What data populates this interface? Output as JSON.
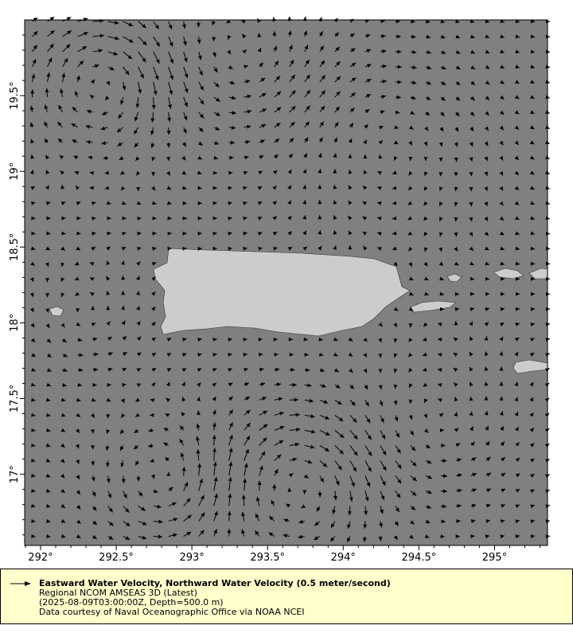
{
  "map": {
    "lon_range": [
      291.895,
      295.35
    ],
    "lat_range": [
      16.53,
      20.0
    ],
    "lon_ticks": [
      "292°",
      "292.5°",
      "293°",
      "293.5°",
      "294°",
      "294.5°",
      "295°"
    ],
    "lon_tick_values": [
      292,
      292.5,
      293,
      293.5,
      294,
      294.5,
      295
    ],
    "lat_ticks": [
      "17°",
      "17.5°",
      "18°",
      "18.5°",
      "19°",
      "19.5°"
    ],
    "lat_tick_values": [
      17,
      17.5,
      18,
      18.5,
      19,
      19.5
    ],
    "vector_grid_spacing_deg": 0.1,
    "reference_vector_m_per_s": 0.5,
    "colors": {
      "ocean": "#808080",
      "land": "#cccccc",
      "vectors": "#000000",
      "legend_bg": "#ffffcc"
    }
  },
  "legend": {
    "title": "Eastward Water Velocity, Northward Water Velocity (0.5 meter/second)",
    "line1": "Regional NCOM AMSEAS 3D (Latest)",
    "line2": "(2025-08-09T03:00:00Z, Depth=500.0 m)",
    "line3": "Data courtesy of Naval Oceanographic Office via NOAA NCEI"
  }
}
